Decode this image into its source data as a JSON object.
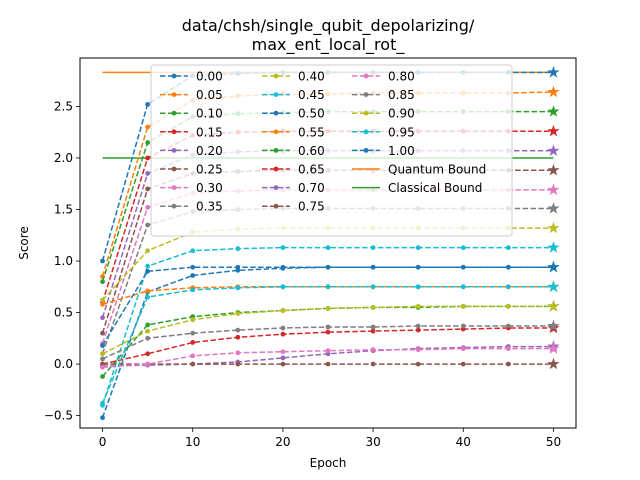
{
  "chart_data": {
    "type": "line",
    "title_lines": [
      "data/chsh/single_qubit_depolarizing/",
      "max_ent_local_rot_"
    ],
    "xlabel": "Epoch",
    "ylabel": "Score",
    "xlim": [
      -2.5,
      52.5
    ],
    "ylim": [
      -0.62,
      2.97
    ],
    "xticks": [
      0,
      10,
      20,
      30,
      40,
      50
    ],
    "yticks": [
      -0.5,
      0.0,
      0.5,
      1.0,
      1.5,
      2.0,
      2.5
    ],
    "ytick_labels": [
      "−0.5",
      "0.0",
      "0.5",
      "1.0",
      "1.5",
      "2.0",
      "2.5"
    ],
    "x": [
      0,
      5,
      10,
      15,
      20,
      25,
      30,
      35,
      40,
      45,
      50
    ],
    "series": [
      {
        "name": "0.00",
        "color": "#1f77b4",
        "values": [
          1.0,
          2.52,
          2.8,
          2.82,
          2.83,
          2.83,
          2.83,
          2.83,
          2.83,
          2.83,
          2.83
        ]
      },
      {
        "name": "0.05",
        "color": "#ff7f0e",
        "values": [
          0.85,
          2.3,
          2.56,
          2.6,
          2.62,
          2.62,
          2.63,
          2.63,
          2.63,
          2.63,
          2.64
        ]
      },
      {
        "name": "0.10",
        "color": "#2ca02c",
        "values": [
          0.8,
          2.15,
          2.4,
          2.43,
          2.44,
          2.45,
          2.45,
          2.45,
          2.45,
          2.45,
          2.45
        ]
      },
      {
        "name": "0.15",
        "color": "#d62728",
        "values": [
          0.6,
          2.0,
          2.22,
          2.25,
          2.26,
          2.26,
          2.26,
          2.26,
          2.26,
          2.26,
          2.26
        ]
      },
      {
        "name": "0.20",
        "color": "#9467bd",
        "values": [
          0.45,
          1.85,
          2.03,
          2.06,
          2.07,
          2.07,
          2.07,
          2.07,
          2.07,
          2.07,
          2.07
        ]
      },
      {
        "name": "0.25",
        "color": "#8c564b",
        "values": [
          0.3,
          1.7,
          1.85,
          1.87,
          1.88,
          1.88,
          1.88,
          1.88,
          1.88,
          1.88,
          1.88
        ]
      },
      {
        "name": "0.30",
        "color": "#e377c2",
        "values": [
          0.2,
          1.52,
          1.66,
          1.68,
          1.69,
          1.69,
          1.69,
          1.69,
          1.69,
          1.69,
          1.69
        ]
      },
      {
        "name": "0.35",
        "color": "#7f7f7f",
        "values": [
          0.1,
          1.35,
          1.48,
          1.5,
          1.51,
          1.51,
          1.51,
          1.51,
          1.51,
          1.51,
          1.51
        ]
      },
      {
        "name": "0.40",
        "color": "#bcbd22",
        "values": [
          0.62,
          1.1,
          1.28,
          1.31,
          1.32,
          1.32,
          1.32,
          1.32,
          1.32,
          1.32,
          1.32
        ]
      },
      {
        "name": "0.45",
        "color": "#17becf",
        "values": [
          -0.4,
          0.95,
          1.1,
          1.12,
          1.13,
          1.13,
          1.13,
          1.13,
          1.13,
          1.13,
          1.13
        ]
      },
      {
        "name": "0.50",
        "color": "#1f77b4",
        "values": [
          -0.52,
          0.7,
          0.86,
          0.91,
          0.93,
          0.94,
          0.94,
          0.94,
          0.94,
          0.94,
          0.94
        ]
      },
      {
        "name": "0.55",
        "color": "#ff7f0e",
        "values": [
          0.58,
          0.71,
          0.74,
          0.75,
          0.75,
          0.75,
          0.75,
          0.75,
          0.75,
          0.75,
          0.75
        ]
      },
      {
        "name": "0.60",
        "color": "#2ca02c",
        "values": [
          -0.12,
          0.38,
          0.46,
          0.5,
          0.52,
          0.54,
          0.55,
          0.55,
          0.56,
          0.56,
          0.56
        ]
      },
      {
        "name": "0.65",
        "color": "#d62728",
        "values": [
          0.0,
          0.1,
          0.21,
          0.26,
          0.29,
          0.31,
          0.32,
          0.33,
          0.34,
          0.35,
          0.35
        ]
      },
      {
        "name": "0.70",
        "color": "#9467bd",
        "values": [
          -0.02,
          -0.01,
          0.0,
          0.02,
          0.06,
          0.1,
          0.13,
          0.15,
          0.16,
          0.17,
          0.17
        ]
      },
      {
        "name": "0.75",
        "color": "#8c564b",
        "values": [
          0.0,
          0.0,
          0.0,
          0.0,
          0.0,
          0.0,
          0.0,
          0.0,
          0.0,
          0.0,
          0.0
        ]
      },
      {
        "name": "0.80",
        "color": "#e377c2",
        "values": [
          -0.03,
          0.0,
          0.08,
          0.11,
          0.12,
          0.13,
          0.14,
          0.14,
          0.15,
          0.15,
          0.15
        ]
      },
      {
        "name": "0.85",
        "color": "#7f7f7f",
        "values": [
          0.05,
          0.25,
          0.3,
          0.33,
          0.35,
          0.36,
          0.36,
          0.37,
          0.37,
          0.37,
          0.37
        ]
      },
      {
        "name": "0.90",
        "color": "#bcbd22",
        "values": [
          0.1,
          0.32,
          0.43,
          0.49,
          0.52,
          0.54,
          0.55,
          0.56,
          0.56,
          0.56,
          0.56
        ]
      },
      {
        "name": "0.95",
        "color": "#17becf",
        "values": [
          -0.38,
          0.65,
          0.72,
          0.74,
          0.75,
          0.75,
          0.75,
          0.75,
          0.75,
          0.75,
          0.75
        ]
      },
      {
        "name": "1.00",
        "color": "#1f77b4",
        "values": [
          0.18,
          0.9,
          0.94,
          0.94,
          0.94,
          0.94,
          0.94,
          0.94,
          0.94,
          0.94,
          0.94
        ]
      }
    ],
    "bounds": [
      {
        "name": "Quantum Bound",
        "color": "#ff7f0e",
        "value": 2.83
      },
      {
        "name": "Classical Bound",
        "color": "#2ca02c",
        "value": 2.0
      }
    ],
    "legend_placement": "upper center",
    "legend_columns": 3,
    "grid": false
  }
}
